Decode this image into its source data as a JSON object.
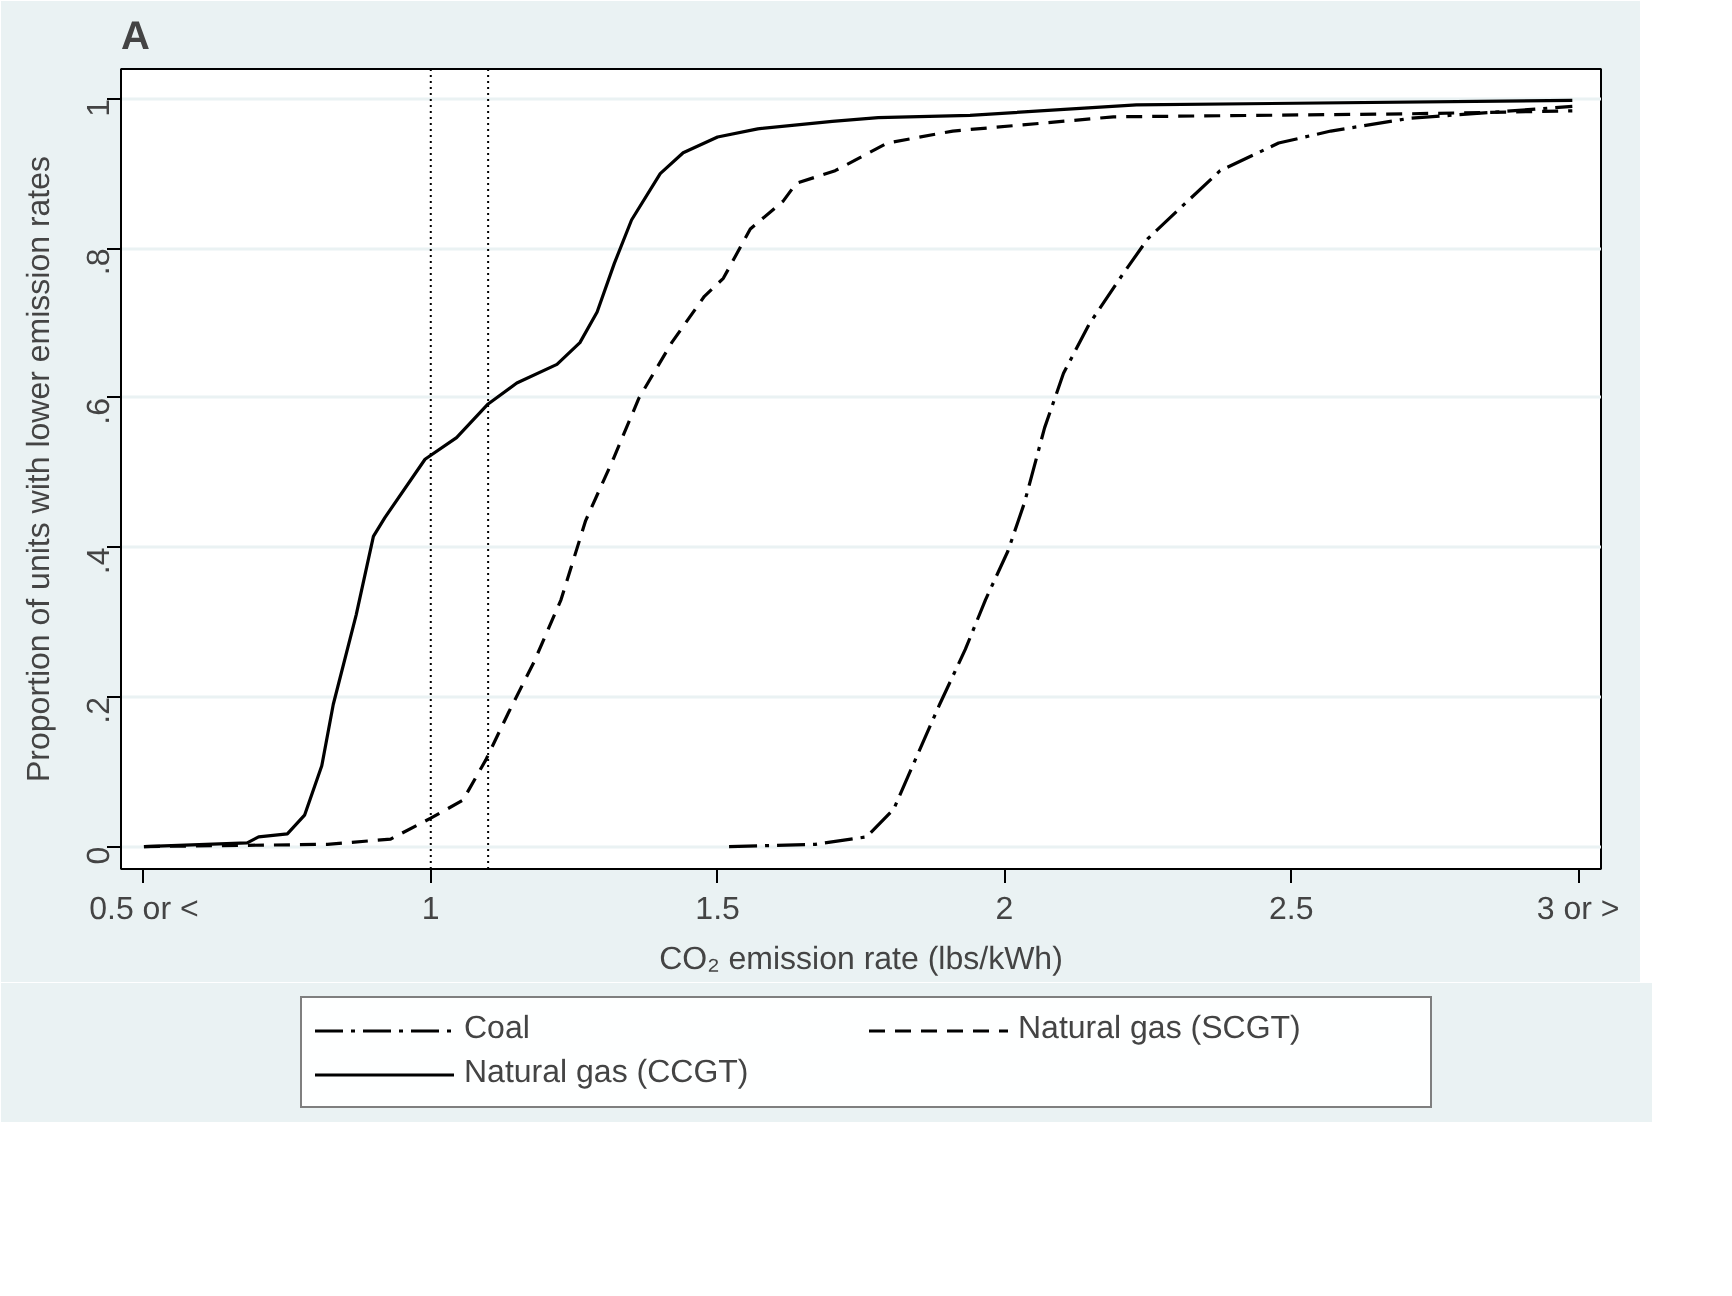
{
  "chart_data": {
    "type": "line",
    "title": "A",
    "xlabel": "CO₂ emission rate (lbs/kWh)",
    "ylabel": "Proportion of units with lower emission rates",
    "xlim": [
      0.46,
      3.04
    ],
    "ylim": [
      -0.03,
      1.04
    ],
    "xticks": [
      {
        "value": 0.5,
        "label": "0.5 or <"
      },
      1,
      1.5,
      2,
      2.5,
      {
        "value": 3,
        "label": "3 or >"
      }
    ],
    "yticks": [
      {
        "value": 0,
        "label": "0"
      },
      {
        "value": 0.2,
        "label": ".2"
      },
      {
        "value": 0.4,
        "label": ".4"
      },
      {
        "value": 0.6,
        "label": ".6"
      },
      {
        "value": 0.8,
        "label": ".8"
      },
      {
        "value": 1,
        "label": "1"
      }
    ],
    "grid": "y",
    "legend": "bottom",
    "ref_lines": [
      {
        "axis": "x",
        "value": 1,
        "color": "#000000",
        "line_style": "dotted"
      },
      {
        "axis": "x",
        "value": 1.1,
        "color": "#000000",
        "line_style": "dotted"
      }
    ],
    "series": [
      {
        "name": "Coal",
        "color": "#000000",
        "line_style": "dashdot",
        "x": [
          1.52,
          1.67,
          1.76,
          1.807,
          1.84,
          1.887,
          1.932,
          1.967,
          2.006,
          2.035,
          2.07,
          2.103,
          2.148,
          2.205,
          2.25,
          2.319,
          2.376,
          2.478,
          2.569,
          2.706,
          2.99
        ],
        "values": [
          0,
          0.003,
          0.013,
          0.05,
          0.108,
          0.19,
          0.264,
          0.33,
          0.395,
          0.46,
          0.56,
          0.633,
          0.699,
          0.764,
          0.813,
          0.863,
          0.904,
          0.941,
          0.957,
          0.974,
          0.99
        ]
      },
      {
        "name": "Natural gas (SCGT)",
        "color": "#000000",
        "line_style": "dashed",
        "x": [
          0.5,
          0.82,
          0.93,
          1.0,
          1.056,
          1.096,
          1.136,
          1.18,
          1.227,
          1.27,
          1.318,
          1.363,
          1.42,
          1.477,
          1.51,
          1.557,
          1.614,
          1.637,
          1.705,
          1.796,
          1.91,
          2.19,
          2.7,
          2.99
        ],
        "values": [
          0,
          0.003,
          0.01,
          0.038,
          0.062,
          0.116,
          0.18,
          0.247,
          0.33,
          0.436,
          0.518,
          0.6,
          0.674,
          0.736,
          0.76,
          0.826,
          0.863,
          0.887,
          0.904,
          0.941,
          0.957,
          0.976,
          0.98,
          0.984
        ]
      },
      {
        "name": "Natural gas (CCGT)",
        "color": "#000000",
        "line_style": "solid",
        "x": [
          0.5,
          0.68,
          0.7,
          0.75,
          0.78,
          0.81,
          0.83,
          0.87,
          0.9,
          0.92,
          0.99,
          1.045,
          1.1,
          1.15,
          1.22,
          1.26,
          1.29,
          1.32,
          1.35,
          1.4,
          1.44,
          1.5,
          1.57,
          1.7,
          1.78,
          1.94,
          2.23,
          2.99
        ],
        "values": [
          0,
          0.005,
          0.013,
          0.017,
          0.042,
          0.108,
          0.19,
          0.31,
          0.415,
          0.44,
          0.518,
          0.547,
          0.592,
          0.62,
          0.645,
          0.674,
          0.715,
          0.78,
          0.838,
          0.9,
          0.928,
          0.949,
          0.96,
          0.97,
          0.975,
          0.978,
          0.992,
          0.998
        ]
      }
    ]
  }
}
